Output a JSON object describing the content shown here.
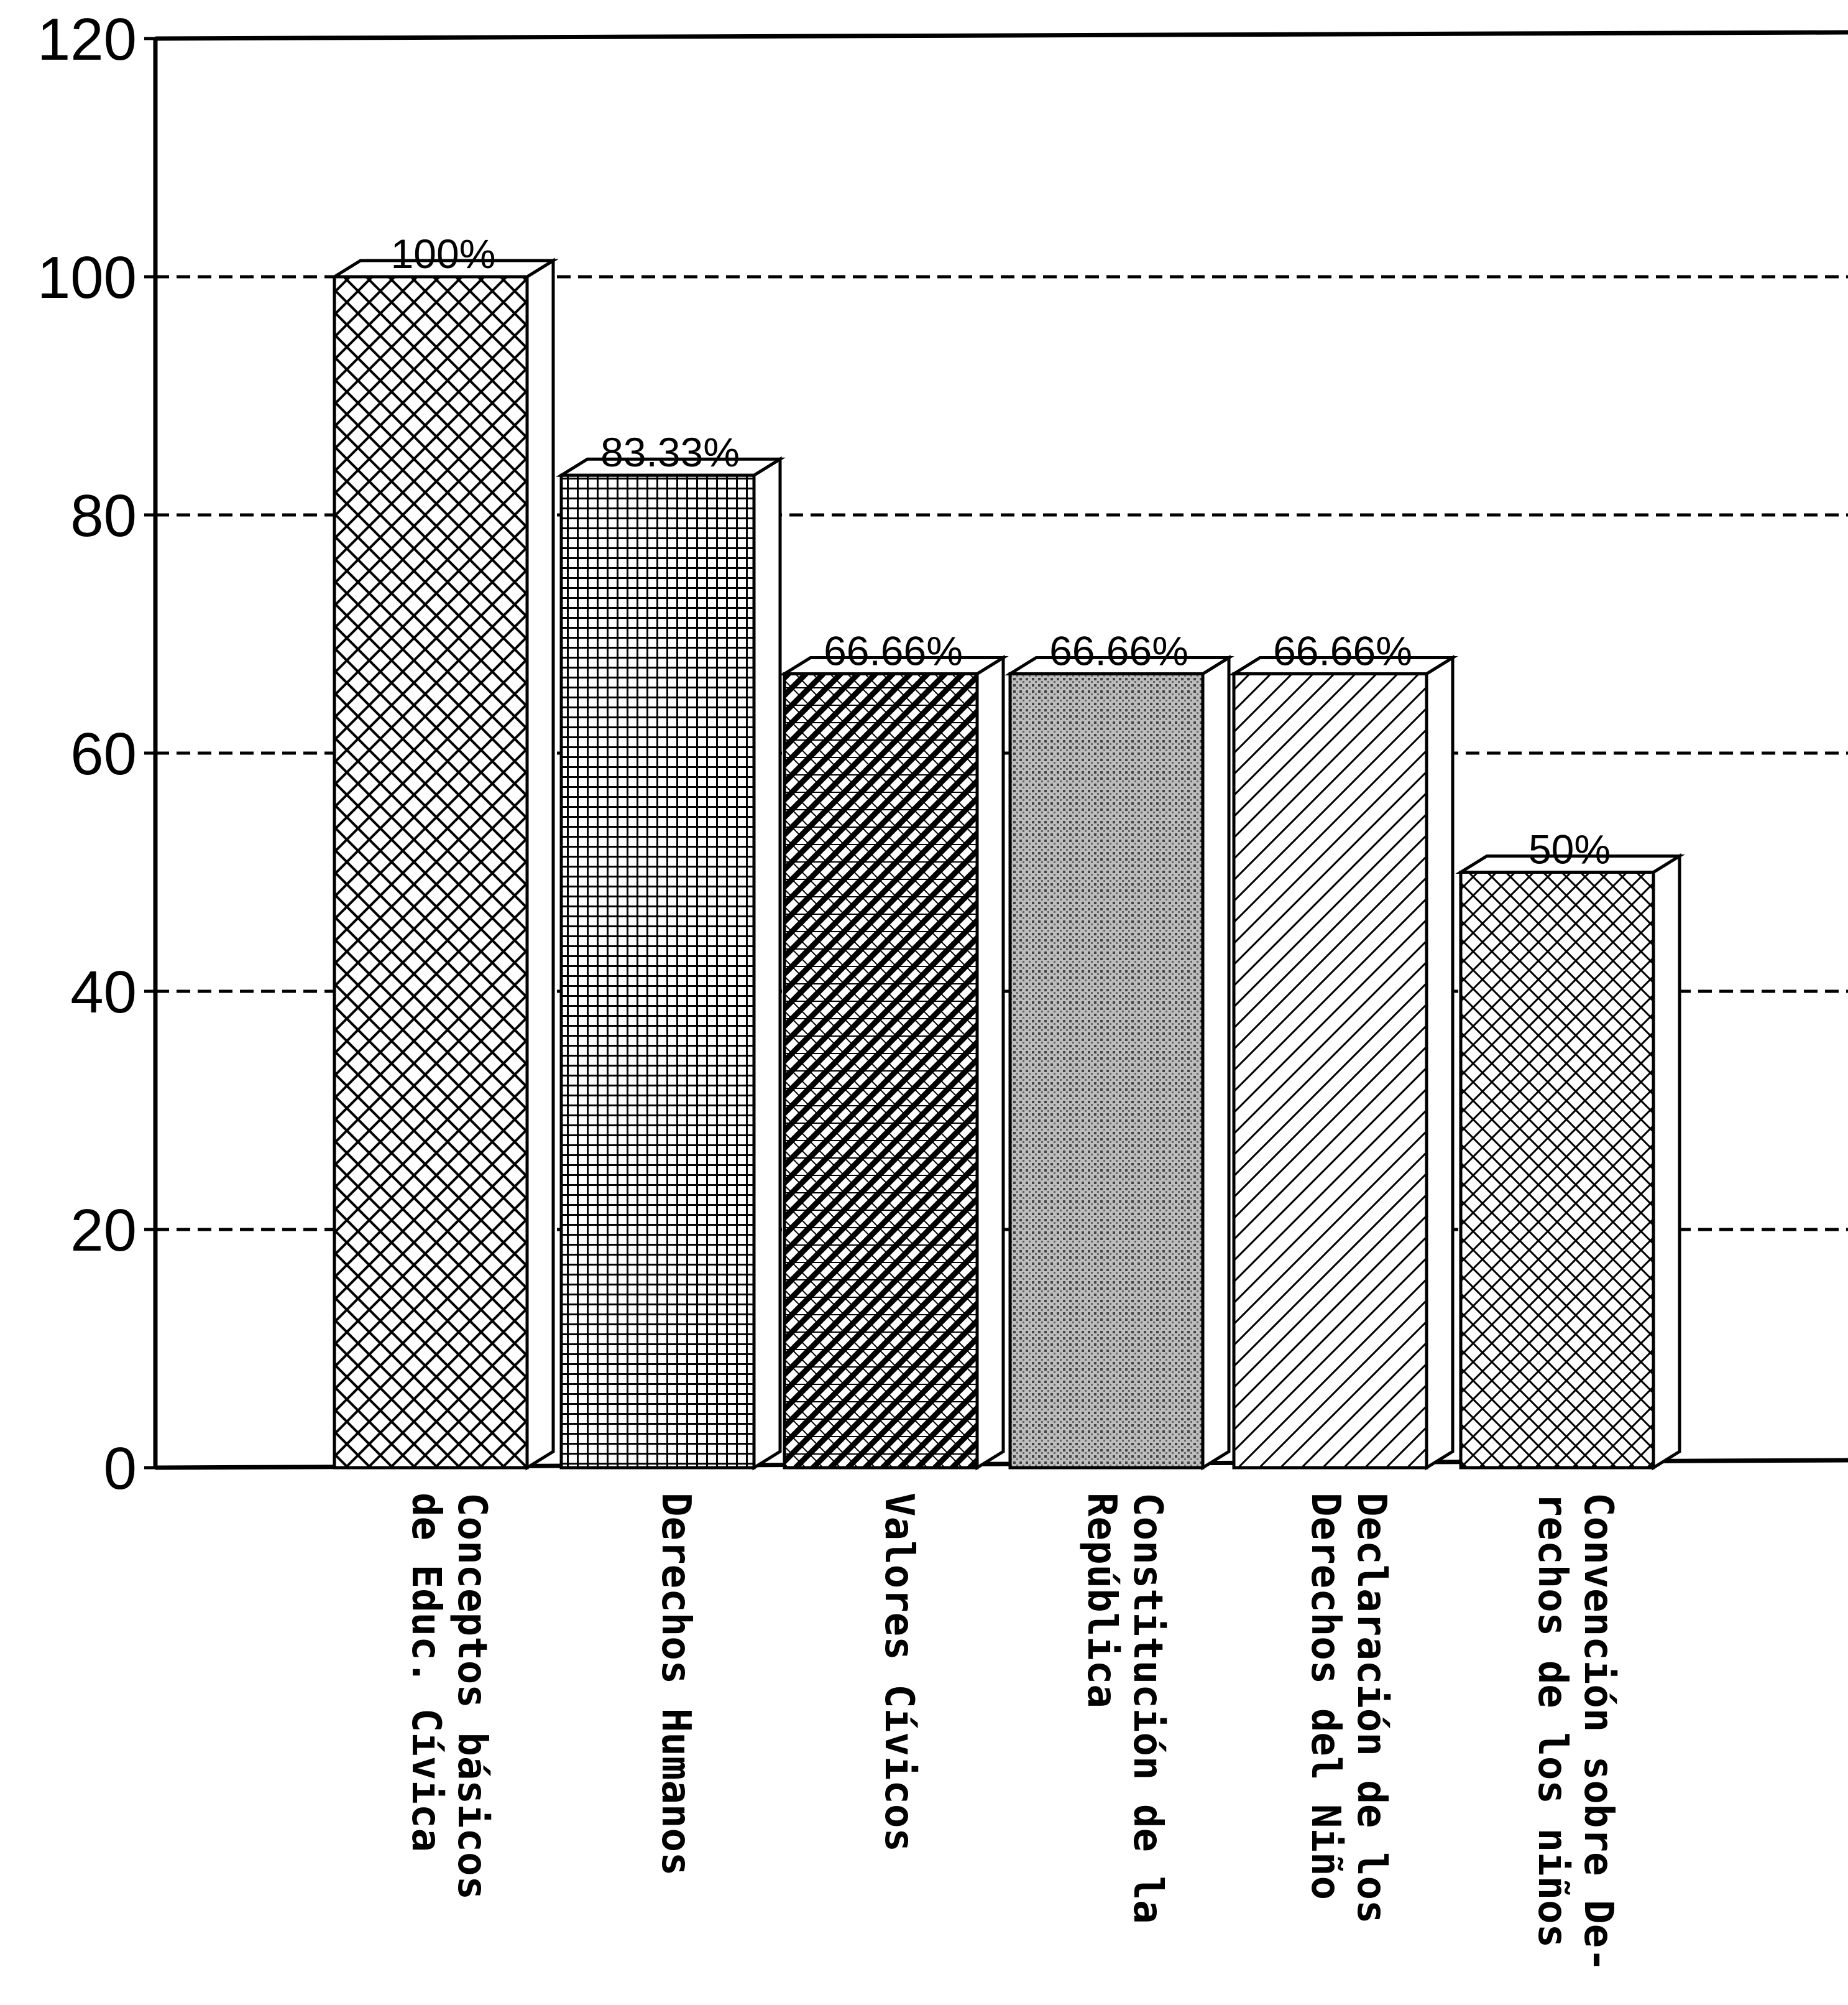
{
  "chart_data": {
    "type": "bar",
    "categories": [
      [
        "Conceptos básicos",
        "de Educ. Cívica"
      ],
      [
        "Derechos Humanos"
      ],
      [
        "Valores Cívicos"
      ],
      [
        "Constitución de la",
        "República"
      ],
      [
        "Declaración de los",
        "Derechos del Niño"
      ],
      [
        "Convención sobre De-",
        "rechos de los niños"
      ]
    ],
    "values": [
      100,
      83.33,
      66.66,
      66.66,
      66.66,
      50
    ],
    "value_labels": [
      "100%",
      "83.33%",
      "66.66%",
      "66.66%",
      "66.66%",
      "50%"
    ],
    "yticks": [
      "0",
      "20",
      "40",
      "60",
      "80",
      "100",
      "120"
    ],
    "ylim": [
      0,
      120
    ],
    "grid": true,
    "legend": "none",
    "bar_patterns": [
      "crosshatch",
      "grid",
      "diagonal-dense",
      "dots",
      "diagonal",
      "crosshatch-fine"
    ]
  }
}
